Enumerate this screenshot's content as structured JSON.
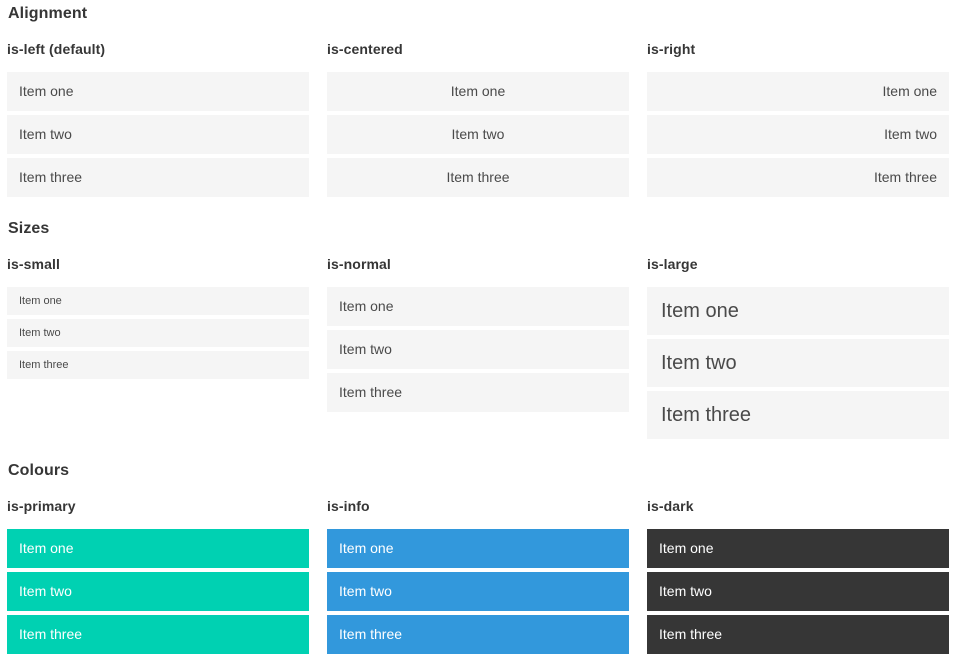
{
  "colors": {
    "primary": "#00d1b2",
    "info": "#3298dc",
    "dark": "#363636",
    "itembg": "#f5f5f5",
    "itemtext": "#4a4a4a",
    "heading": "#363636"
  },
  "sections": [
    {
      "id": "alignment",
      "title": "Alignment",
      "groups": [
        {
          "label": "is-left (default)",
          "variant": "is-left",
          "items": [
            "Item one",
            "Item two",
            "Item three"
          ]
        },
        {
          "label": "is-centered",
          "variant": "is-centered",
          "items": [
            "Item one",
            "Item two",
            "Item three"
          ]
        },
        {
          "label": "is-right",
          "variant": "is-right",
          "items": [
            "Item one",
            "Item two",
            "Item three"
          ]
        }
      ]
    },
    {
      "id": "sizes",
      "title": "Sizes",
      "groups": [
        {
          "label": "is-small",
          "variant": "is-small",
          "items": [
            "Item one",
            "Item two",
            "Item three"
          ]
        },
        {
          "label": "is-normal",
          "variant": "is-normal",
          "items": [
            "Item one",
            "Item two",
            "Item three"
          ]
        },
        {
          "label": "is-large",
          "variant": "is-large",
          "items": [
            "Item one",
            "Item two",
            "Item three"
          ]
        }
      ]
    },
    {
      "id": "colours",
      "title": "Colours",
      "groups": [
        {
          "label": "is-primary",
          "variant": "is-primary",
          "items": [
            "Item one",
            "Item two",
            "Item three"
          ]
        },
        {
          "label": "is-info",
          "variant": "is-info",
          "items": [
            "Item one",
            "Item two",
            "Item three"
          ]
        },
        {
          "label": "is-dark",
          "variant": "is-dark",
          "items": [
            "Item one",
            "Item two",
            "Item three"
          ]
        }
      ]
    }
  ]
}
